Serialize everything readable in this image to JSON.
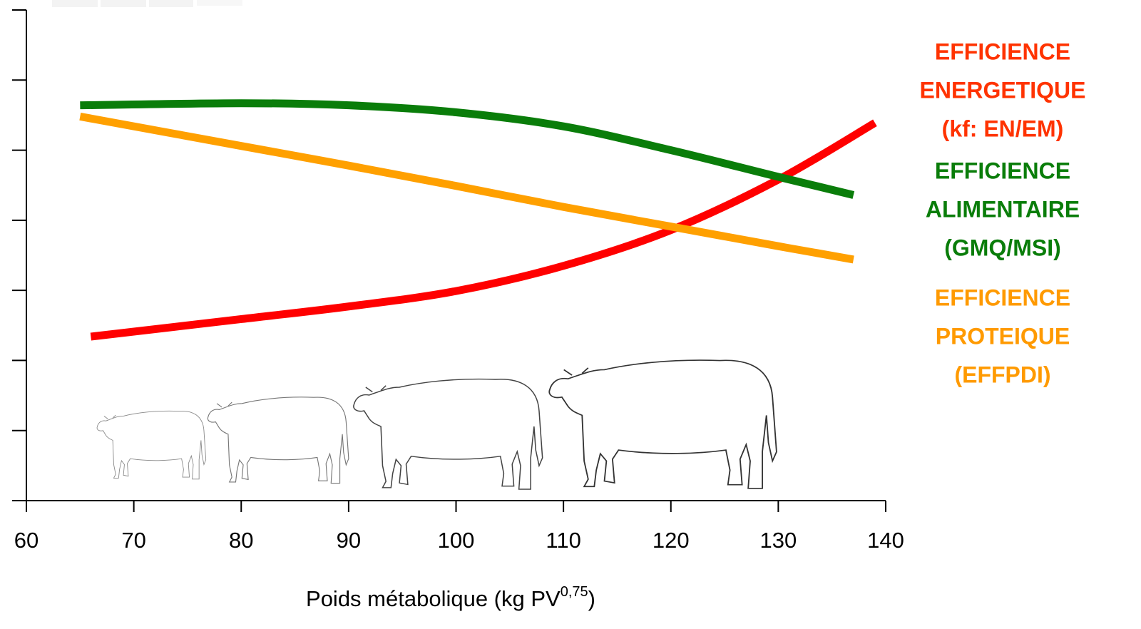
{
  "chart_data": {
    "type": "line",
    "xlabel": [
      "Poids métabolique (kg PV",
      "0,75",
      ")"
    ],
    "xlim": [
      60,
      140
    ],
    "xticks": [
      60,
      70,
      80,
      90,
      100,
      110,
      120,
      130,
      140
    ],
    "ylim": [
      0,
      7
    ],
    "yticks": [
      0,
      1,
      2,
      3,
      4,
      5,
      6,
      7
    ],
    "series": [
      {
        "name": [
          "EFFICIENCE",
          "ENERGETIQUE",
          "(kf: EN/EM)"
        ],
        "color": "#ff0000",
        "label_color": "#ff3300",
        "x": [
          66,
          80,
          90,
          100,
          110,
          120,
          130,
          139
        ],
        "values": [
          2.34,
          2.59,
          2.77,
          2.99,
          3.35,
          3.86,
          4.58,
          5.39
        ]
      },
      {
        "name": [
          "EFFICIENCE",
          "ALIMENTAIRE",
          "(GMQ/MSI)"
        ],
        "color": "#0a7d0a",
        "label_color": "#0a7d0a",
        "x": [
          65,
          80,
          90,
          100,
          110,
          120,
          130,
          137
        ],
        "values": [
          5.64,
          5.67,
          5.64,
          5.54,
          5.34,
          5.0,
          4.62,
          4.36
        ]
      },
      {
        "name": [
          "EFFICIENCE",
          "PROTEIQUE",
          "(EFFPDI)"
        ],
        "color": "#ffa000",
        "label_color": "#ff9a00",
        "x": [
          65,
          80,
          90,
          100,
          110,
          120,
          130,
          137
        ],
        "values": [
          5.48,
          5.06,
          4.78,
          4.49,
          4.19,
          3.91,
          3.63,
          3.44
        ]
      }
    ]
  }
}
